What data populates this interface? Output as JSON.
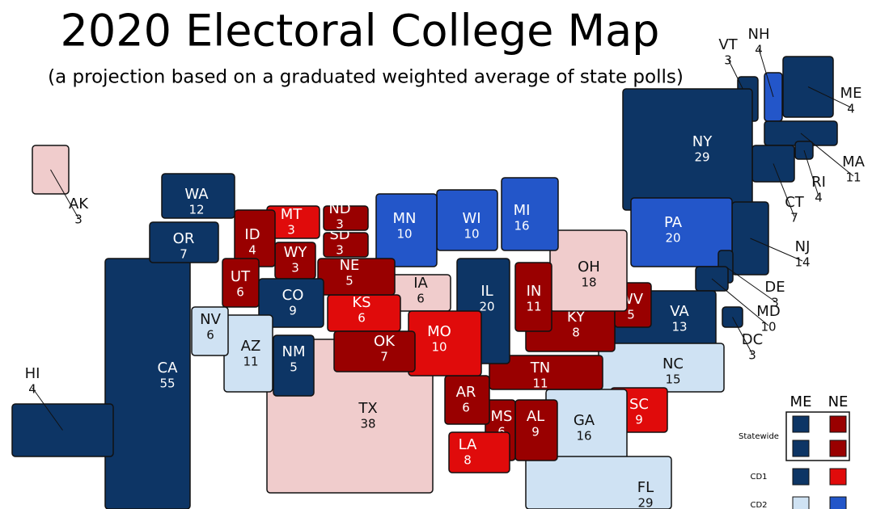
{
  "title": "2020 Electoral College Map",
  "subtitle": "(a projection based on a graduated weighted average of state polls)",
  "states": [
    {
      "abbr": "CA",
      "votes": 55,
      "color": "#0d3565"
    },
    {
      "abbr": "TX",
      "votes": 38,
      "color": "#f0cccc"
    },
    {
      "abbr": "VT",
      "votes": 3,
      "color": "#0d3565"
    },
    {
      "abbr": "NH",
      "votes": 4,
      "color": "#2356c9"
    },
    {
      "abbr": "ME",
      "votes": 4,
      "color": "#0d3565"
    },
    {
      "abbr": "MA",
      "votes": 11,
      "color": "#0d3565"
    },
    {
      "abbr": "RI",
      "votes": 4,
      "color": "#0d3565"
    },
    {
      "abbr": "CT",
      "votes": 7,
      "color": "#0d3565"
    },
    {
      "abbr": "NY",
      "votes": 29,
      "color": "#0d3565"
    },
    {
      "abbr": "NJ",
      "votes": 14,
      "color": "#0d3565"
    },
    {
      "abbr": "PA",
      "votes": 20,
      "color": "#2356c9"
    },
    {
      "abbr": "DE",
      "votes": 3,
      "color": "#0d3565"
    },
    {
      "abbr": "MD",
      "votes": 10,
      "color": "#0d3565"
    },
    {
      "abbr": "DC",
      "votes": 3,
      "color": "#0d3565"
    },
    {
      "abbr": "VA",
      "votes": 13,
      "color": "#0d3565"
    },
    {
      "abbr": "NC",
      "votes": 15,
      "color": "#cfe2f3"
    },
    {
      "abbr": "SC",
      "votes": 9,
      "color": "#e00b0b"
    },
    {
      "abbr": "GA",
      "votes": 16,
      "color": "#cfe2f3"
    },
    {
      "abbr": "FL",
      "votes": 29,
      "color": "#cfe2f3"
    },
    {
      "abbr": "AL",
      "votes": 9,
      "color": "#990000"
    },
    {
      "abbr": "MS",
      "votes": 6,
      "color": "#990000"
    },
    {
      "abbr": "LA",
      "votes": 8,
      "color": "#e00b0b"
    },
    {
      "abbr": "AR",
      "votes": 6,
      "color": "#990000"
    },
    {
      "abbr": "TN",
      "votes": 11,
      "color": "#990000"
    },
    {
      "abbr": "KY",
      "votes": 8,
      "color": "#990000"
    },
    {
      "abbr": "WV",
      "votes": 5,
      "color": "#990000"
    },
    {
      "abbr": "OH",
      "votes": 18,
      "color": "#f0cccc"
    },
    {
      "abbr": "IN",
      "votes": 11,
      "color": "#990000"
    },
    {
      "abbr": "MI",
      "votes": 16,
      "color": "#2356c9"
    },
    {
      "abbr": "IL",
      "votes": 20,
      "color": "#0d3565"
    },
    {
      "abbr": "WI",
      "votes": 10,
      "color": "#2356c9"
    },
    {
      "abbr": "MN",
      "votes": 10,
      "color": "#2356c9"
    },
    {
      "abbr": "IA",
      "votes": 6,
      "color": "#f0cccc"
    },
    {
      "abbr": "MO",
      "votes": 10,
      "color": "#e00b0b"
    },
    {
      "abbr": "KS",
      "votes": 6,
      "color": "#e00b0b"
    },
    {
      "abbr": "OK",
      "votes": 7,
      "color": "#990000"
    },
    {
      "abbr": "NE",
      "votes": 5,
      "color": "#990000"
    },
    {
      "abbr": "SD",
      "votes": 3,
      "color": "#990000"
    },
    {
      "abbr": "ND",
      "votes": 3,
      "color": "#990000"
    },
    {
      "abbr": "MT",
      "votes": 3,
      "color": "#e00b0b"
    },
    {
      "abbr": "WY",
      "votes": 3,
      "color": "#990000"
    },
    {
      "abbr": "ID",
      "votes": 4,
      "color": "#990000"
    },
    {
      "abbr": "UT",
      "votes": 6,
      "color": "#990000"
    },
    {
      "abbr": "CO",
      "votes": 9,
      "color": "#0d3565"
    },
    {
      "abbr": "NM",
      "votes": 5,
      "color": "#0d3565"
    },
    {
      "abbr": "AZ",
      "votes": 11,
      "color": "#cfe2f3"
    },
    {
      "abbr": "NV",
      "votes": 6,
      "color": "#cfe2f3"
    },
    {
      "abbr": "OR",
      "votes": 7,
      "color": "#0d3565"
    },
    {
      "abbr": "WA",
      "votes": 12,
      "color": "#0d3565"
    },
    {
      "abbr": "AK",
      "votes": 3,
      "color": "#f0cccc"
    },
    {
      "abbr": "HI",
      "votes": 4,
      "color": "#0d3565"
    }
  ],
  "legend": {
    "columns": [
      "ME",
      "NE"
    ],
    "rows": [
      {
        "label": "Statewide",
        "swatches": [
          [
            "#0d3565",
            "#990000"
          ],
          [
            "#0d3565",
            "#990000"
          ]
        ]
      },
      {
        "label": "CD1",
        "swatches": [
          [
            "#0d3565",
            "#e00b0b"
          ]
        ]
      },
      {
        "label": "CD2",
        "swatches": [
          [
            "#cfe2f3",
            "#2356c9"
          ]
        ]
      }
    ]
  }
}
